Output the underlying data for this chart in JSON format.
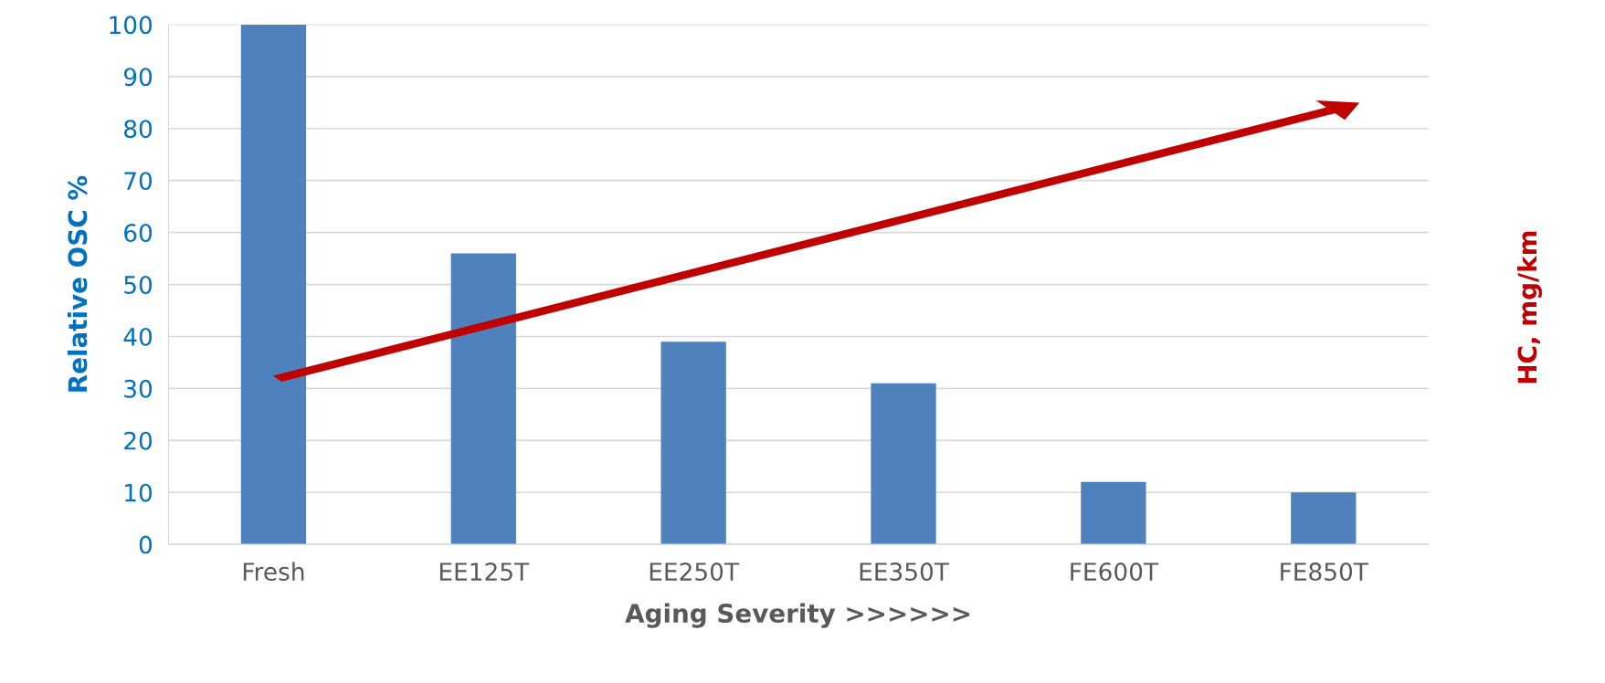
{
  "chart_data": {
    "type": "bar",
    "xlabel": "Aging Severity >>>>>>",
    "ylabel": "Relative OSC %",
    "y2label": "HC, mg/km",
    "categories": [
      "Fresh",
      "EE125T",
      "EE250T",
      "EE350T",
      "FE600T",
      "FE850T"
    ],
    "values": [
      100,
      56,
      39,
      31,
      12,
      10
    ],
    "color": "#4f81bd",
    "ylim": [
      0,
      100
    ],
    "yticks": [
      0,
      10,
      20,
      30,
      40,
      50,
      60,
      70,
      80,
      90,
      100
    ],
    "grid": "y",
    "legend": false
  }
}
